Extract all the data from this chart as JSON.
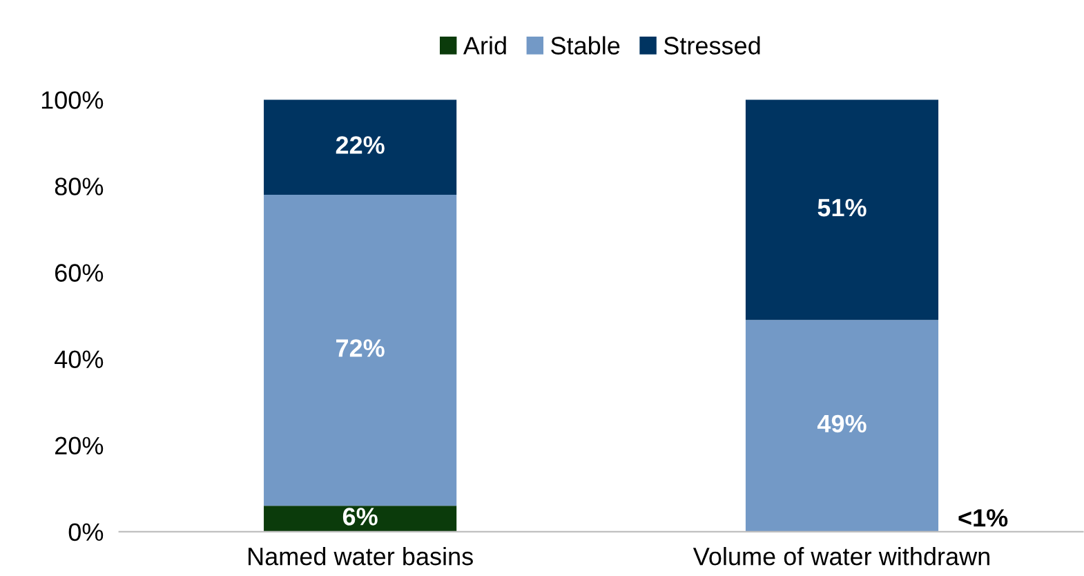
{
  "chart_data": {
    "type": "bar",
    "stacked": true,
    "categories": [
      "Named water basins",
      "Volume of water withdrawn"
    ],
    "series": [
      {
        "name": "Arid",
        "color": "#0b3b0b",
        "values": [
          6,
          null
        ],
        "value_labels": [
          "6%",
          null
        ]
      },
      {
        "name": "Stable",
        "color": "#7399c6",
        "values": [
          72,
          49
        ],
        "value_labels": [
          "72%",
          "49%"
        ]
      },
      {
        "name": "Stressed",
        "color": "#003461",
        "values": [
          22,
          51
        ],
        "value_labels": [
          "22%",
          "51%"
        ]
      }
    ],
    "ylim": [
      0,
      100
    ],
    "yticks": [
      {
        "value": 0,
        "label": "0%"
      },
      {
        "value": 20,
        "label": "20%"
      },
      {
        "value": 40,
        "label": "40%"
      },
      {
        "value": 60,
        "label": "60%"
      },
      {
        "value": 80,
        "label": "80%"
      },
      {
        "value": 100,
        "label": "100%"
      }
    ],
    "annotations": [
      "<1%"
    ],
    "legend": "top"
  }
}
